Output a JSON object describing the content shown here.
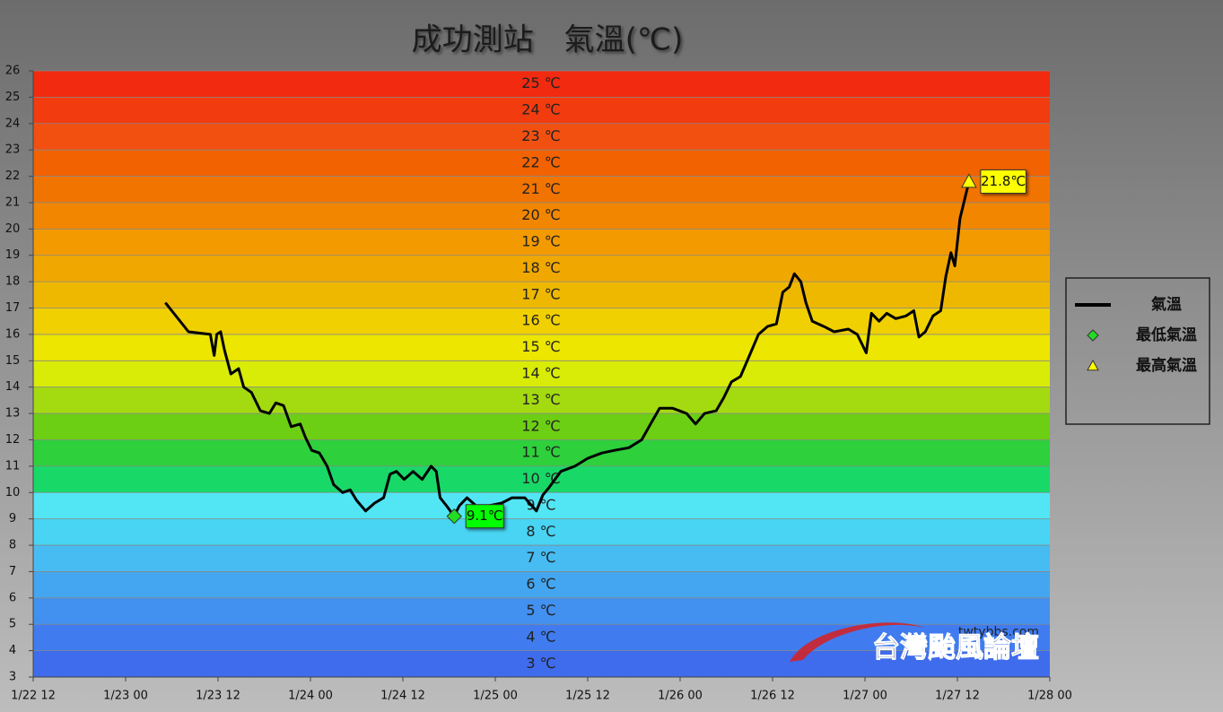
{
  "chart_data": {
    "type": "line",
    "title": "成功測站　氣溫(℃)",
    "watermark": {
      "site": "twtybbs.com",
      "name": "台灣颱風論壇"
    },
    "xlim": [
      "1/22 12",
      "1/28 00"
    ],
    "xticks": [
      "1/22 12",
      "1/23 00",
      "1/23 12",
      "1/24 00",
      "1/24 12",
      "1/25 00",
      "1/25 12",
      "1/26 00",
      "1/26 12",
      "1/27 00",
      "1/27 12",
      "1/28 00"
    ],
    "ylim": [
      3,
      26
    ],
    "yticks": [
      3,
      4,
      5,
      6,
      7,
      8,
      9,
      10,
      11,
      12,
      13,
      14,
      15,
      16,
      17,
      18,
      19,
      20,
      21,
      22,
      23,
      24,
      25,
      26
    ],
    "grid": true,
    "band_labels": [
      "3 ℃",
      "4 ℃",
      "5 ℃",
      "6 ℃",
      "7 ℃",
      "8 ℃",
      "9 ℃",
      "10 ℃",
      "11 ℃",
      "12 ℃",
      "13 ℃",
      "14 ℃",
      "15 ℃",
      "16 ℃",
      "17 ℃",
      "18 ℃",
      "19 ℃",
      "20 ℃",
      "21 ℃",
      "22 ℃",
      "23 ℃",
      "24 ℃",
      "25 ℃"
    ],
    "band_colors": [
      "#3f6cec",
      "#407cf0",
      "#4290f0",
      "#44a6f0",
      "#46bcf2",
      "#48d4f2",
      "#52e6f4",
      "#18d868",
      "#2ed03c",
      "#6ccf14",
      "#a4da10",
      "#d8ec08",
      "#ece600",
      "#f0d000",
      "#eeb800",
      "#f0a800",
      "#f29a00",
      "#f28600",
      "#f27400",
      "#f26200",
      "#f25010",
      "#f23c10",
      "#f22a10"
    ],
    "legend": "right",
    "series": [
      {
        "name": "氣溫",
        "color": "#000000",
        "marker": "line",
        "x": [
          "1/23 05:10",
          "1/23 08:10",
          "1/23 11:00",
          "1/23 11:30",
          "1/23 11:50",
          "1/23 12:20",
          "1/23 12:50",
          "1/23 13:40",
          "1/23 14:40",
          "1/23 15:20",
          "1/23 16:20",
          "1/23 17:30",
          "1/23 18:40",
          "1/23 19:30",
          "1/23 20:30",
          "1/23 21:30",
          "1/23 22:40",
          "1/23 23:20",
          "1/24 00:10",
          "1/24 01:10",
          "1/24 02:10",
          "1/24 03:00",
          "1/24 04:10",
          "1/24 05:10",
          "1/24 06:00",
          "1/24 07:10",
          "1/24 08:20",
          "1/24 09:30",
          "1/24 10:20",
          "1/24 11:10",
          "1/24 12:10",
          "1/24 13:20",
          "1/24 14:30",
          "1/24 15:40",
          "1/24 16:20",
          "1/24 16:50",
          "1/24 17:40",
          "1/24 18:40",
          "1/24 19:20",
          "1/24 20:20",
          "1/24 21:30",
          "1/24 23:10",
          "1/25 00:50",
          "1/25 02:10",
          "1/25 03:50",
          "1/25 05:20",
          "1/25 06:10",
          "1/25 07:00",
          "1/25 08:30",
          "1/25 10:20",
          "1/25 12:00",
          "1/25 13:50",
          "1/25 15:30",
          "1/25 17:20",
          "1/25 19:00",
          "1/25 20:10",
          "1/25 21:20",
          "1/25 23:00",
          "1/26 00:50",
          "1/26 02:00",
          "1/26 03:10",
          "1/26 04:40",
          "1/26 05:40",
          "1/26 06:40",
          "1/26 07:50",
          "1/26 09:00",
          "1/26 10:10",
          "1/26 11:20",
          "1/26 12:30",
          "1/26 13:20",
          "1/26 14:10",
          "1/26 14:50",
          "1/26 15:40",
          "1/26 16:20",
          "1/26 17:10",
          "1/26 18:40",
          "1/26 20:00",
          "1/26 21:50",
          "1/26 23:00",
          "1/27 00:10",
          "1/27 00:50",
          "1/27 01:50",
          "1/27 02:50",
          "1/27 04:00",
          "1/27 05:20",
          "1/27 06:20",
          "1/27 07:00",
          "1/27 07:50",
          "1/27 08:50",
          "1/27 09:50",
          "1/27 10:30",
          "1/27 11:10",
          "1/27 11:40",
          "1/27 12:20",
          "1/27 13:00",
          "1/27 13:30"
        ],
        "values": [
          17.2,
          16.1,
          16.0,
          15.2,
          16.0,
          16.1,
          15.4,
          14.5,
          14.7,
          14.0,
          13.8,
          13.1,
          13.0,
          13.4,
          13.3,
          12.5,
          12.6,
          12.1,
          11.6,
          11.5,
          11.0,
          10.3,
          10.0,
          10.1,
          9.7,
          9.3,
          9.6,
          9.8,
          10.7,
          10.8,
          10.5,
          10.8,
          10.5,
          11.0,
          10.8,
          9.8,
          9.5,
          9.1,
          9.5,
          9.8,
          9.5,
          9.5,
          9.6,
          9.8,
          9.8,
          9.3,
          9.9,
          10.2,
          10.8,
          11.0,
          11.3,
          11.5,
          11.6,
          11.7,
          12.0,
          12.6,
          13.2,
          13.2,
          13.0,
          12.6,
          13.0,
          13.1,
          13.6,
          14.2,
          14.4,
          15.2,
          16.0,
          16.3,
          16.4,
          17.6,
          17.8,
          18.3,
          18.0,
          17.2,
          16.5,
          16.3,
          16.1,
          16.2,
          16.0,
          15.3,
          16.8,
          16.5,
          16.8,
          16.6,
          16.7,
          16.9,
          15.9,
          16.1,
          16.7,
          16.9,
          18.2,
          19.1,
          18.6,
          20.4,
          21.2,
          21.8
        ]
      },
      {
        "name": "最低氣溫",
        "color": "#22dd22",
        "marker": "diamond",
        "label_color": "#00ff00",
        "x": [
          "1/24 18:40"
        ],
        "values": [
          9.1
        ],
        "value_labels": [
          "9.1℃"
        ]
      },
      {
        "name": "最高氣溫",
        "color": "#ffff00",
        "marker": "triangle",
        "label_color": "#ffff00",
        "x": [
          "1/27 13:30"
        ],
        "values": [
          21.8
        ],
        "value_labels": [
          "21.8℃"
        ]
      }
    ]
  }
}
